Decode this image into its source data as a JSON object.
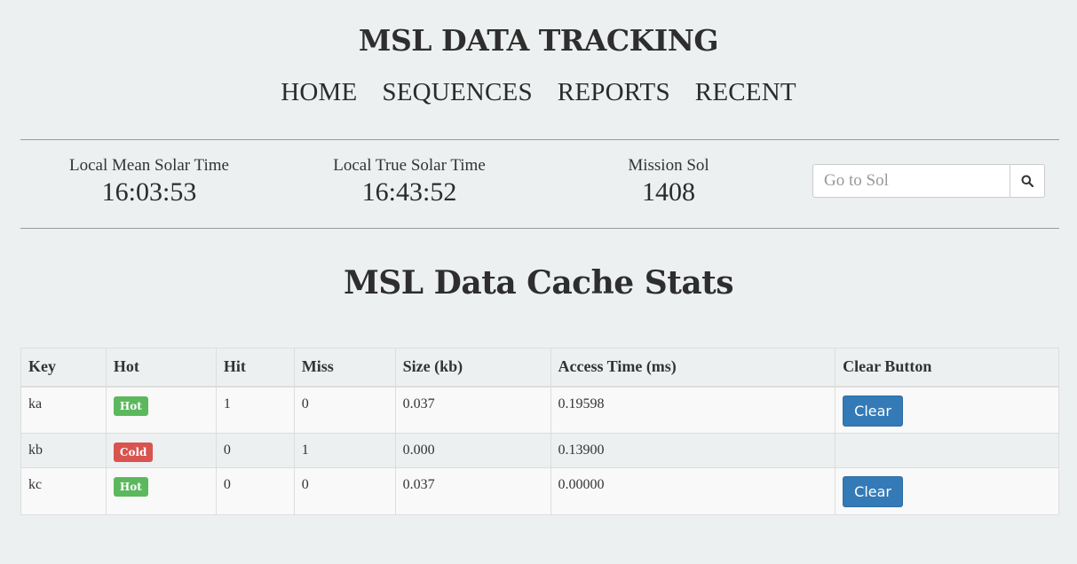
{
  "header": {
    "title": "MSL DATA TRACKING",
    "nav": [
      {
        "label": "HOME"
      },
      {
        "label": "SEQUENCES"
      },
      {
        "label": "REPORTS"
      },
      {
        "label": "RECENT"
      }
    ]
  },
  "clocks": {
    "lmst": {
      "label": "Local Mean Solar Time",
      "value": "16:03:53"
    },
    "ltst": {
      "label": "Local True Solar Time",
      "value": "16:43:52"
    },
    "sol": {
      "label": "Mission Sol",
      "value": "1408"
    }
  },
  "sol_search": {
    "placeholder": "Go to Sol",
    "value": "",
    "icon": "search-icon"
  },
  "section": {
    "title": "MSL Data Cache Stats"
  },
  "table": {
    "headers": [
      "Key",
      "Hot",
      "Hit",
      "Miss",
      "Size (kb)",
      "Access Time (ms)",
      "Clear Button"
    ],
    "rows": [
      {
        "key": "ka",
        "hot": "Hot",
        "hit": "1",
        "miss": "0",
        "size": "0.037",
        "access": "0.19598",
        "clear": "Clear"
      },
      {
        "key": "kb",
        "hot": "Cold",
        "hit": "0",
        "miss": "1",
        "size": "0.000",
        "access": "0.13900",
        "clear": ""
      },
      {
        "key": "kc",
        "hot": "Hot",
        "hit": "0",
        "miss": "0",
        "size": "0.037",
        "access": "0.00000",
        "clear": "Clear"
      }
    ]
  },
  "colors": {
    "background": "#edf0f1",
    "hot_badge": "#5cb85c",
    "cold_badge": "#d9534f",
    "primary_button": "#337ab7"
  }
}
